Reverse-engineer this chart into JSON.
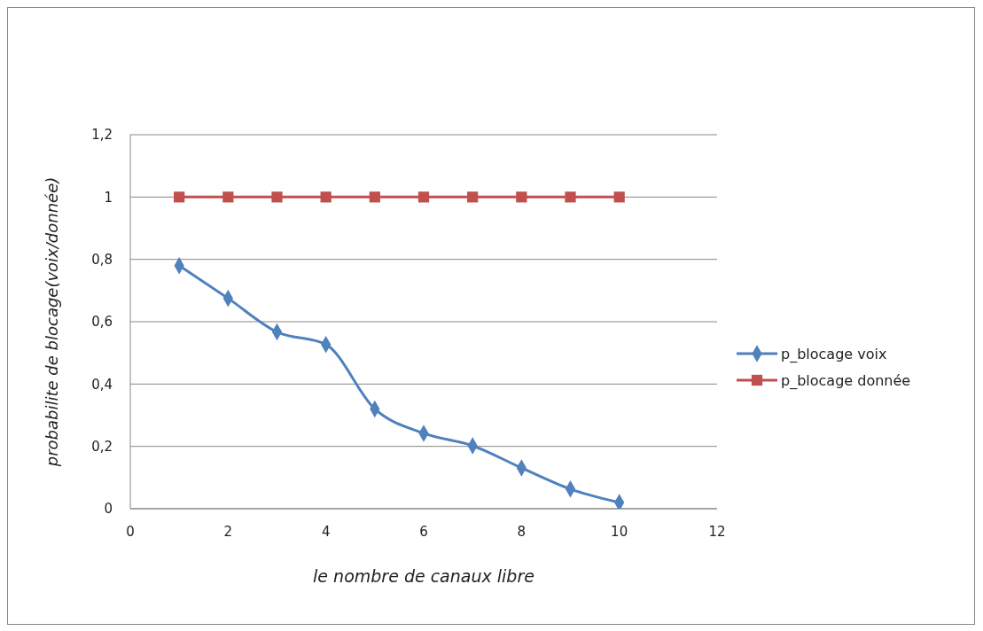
{
  "chart_data": {
    "type": "line",
    "xlabel": "le nombre de canaux libre",
    "ylabel": "probabilite de blocage(voix/donnée)",
    "x": [
      1,
      2,
      3,
      4,
      5,
      6,
      7,
      8,
      9,
      10
    ],
    "series": [
      {
        "name": "p_blocage voix",
        "color": "#4f81bd",
        "marker": "diamond",
        "values": [
          0.78,
          0.675,
          0.567,
          0.527,
          0.32,
          0.242,
          0.202,
          0.131,
          0.063,
          0.02
        ]
      },
      {
        "name": "p_blocage donnée",
        "color": "#c0504d",
        "marker": "square",
        "values": [
          1,
          1,
          1,
          1,
          1,
          1,
          1,
          1,
          1,
          1
        ]
      }
    ],
    "xlim": [
      0,
      12
    ],
    "xticks": [
      0,
      2,
      4,
      6,
      8,
      10,
      12
    ],
    "ylim": [
      0,
      1.2
    ],
    "yticks": [
      0,
      {
        "value": 0.2,
        "label": "0,2"
      },
      {
        "value": 0.4,
        "label": "0,4"
      },
      {
        "value": 0.6,
        "label": "0,6"
      },
      {
        "value": 0.8,
        "label": "0,8"
      },
      1,
      {
        "value": 1.2,
        "label": "1,2"
      }
    ],
    "grid": "y",
    "legend": "right"
  }
}
